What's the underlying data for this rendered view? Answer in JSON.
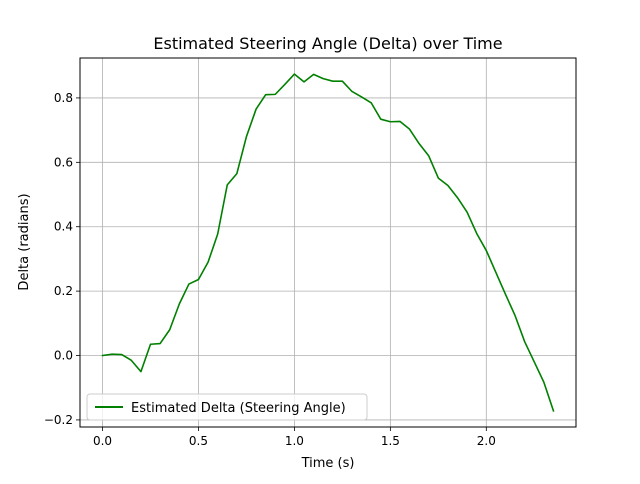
{
  "chart_data": {
    "type": "line",
    "title": "Estimated Steering Angle (Delta) over Time",
    "xlabel": "Time (s)",
    "ylabel": "Delta (radians)",
    "xlim": [
      -0.1175,
      2.4675
    ],
    "ylim": [
      -0.222,
      0.924
    ],
    "x_ticks": [
      0.0,
      0.5,
      1.0,
      1.5,
      2.0
    ],
    "x_tick_labels": [
      "0.0",
      "0.5",
      "1.0",
      "1.5",
      "2.0"
    ],
    "y_ticks": [
      -0.2,
      0.0,
      0.2,
      0.4,
      0.6,
      0.8
    ],
    "y_tick_labels": [
      "−0.2",
      "0.0",
      "0.2",
      "0.4",
      "0.6",
      "0.8"
    ],
    "grid": true,
    "legend_position": "lower-left",
    "series": [
      {
        "name": "Estimated Delta (Steering Angle)",
        "color": "#008000",
        "x": [
          0.0,
          0.05,
          0.1,
          0.15,
          0.2,
          0.25,
          0.3,
          0.35,
          0.4,
          0.45,
          0.5,
          0.55,
          0.6,
          0.65,
          0.7,
          0.75,
          0.8,
          0.85,
          0.9,
          0.95,
          1.0,
          1.05,
          1.1,
          1.15,
          1.2,
          1.25,
          1.3,
          1.35,
          1.4,
          1.45,
          1.5,
          1.55,
          1.6,
          1.65,
          1.7,
          1.75,
          1.8,
          1.85,
          1.9,
          1.95,
          2.0,
          2.05,
          2.1,
          2.15,
          2.2,
          2.25,
          2.3,
          2.35
        ],
        "values": [
          0.0,
          0.004,
          0.003,
          -0.015,
          -0.05,
          0.035,
          0.037,
          0.08,
          0.16,
          0.222,
          0.236,
          0.29,
          0.377,
          0.53,
          0.565,
          0.68,
          0.765,
          0.81,
          0.811,
          0.842,
          0.874,
          0.85,
          0.873,
          0.86,
          0.852,
          0.852,
          0.82,
          0.803,
          0.785,
          0.734,
          0.726,
          0.727,
          0.703,
          0.658,
          0.62,
          0.551,
          0.528,
          0.49,
          0.445,
          0.379,
          0.326,
          0.258,
          0.19,
          0.124,
          0.043,
          -0.02,
          -0.083,
          -0.172
        ]
      }
    ]
  }
}
